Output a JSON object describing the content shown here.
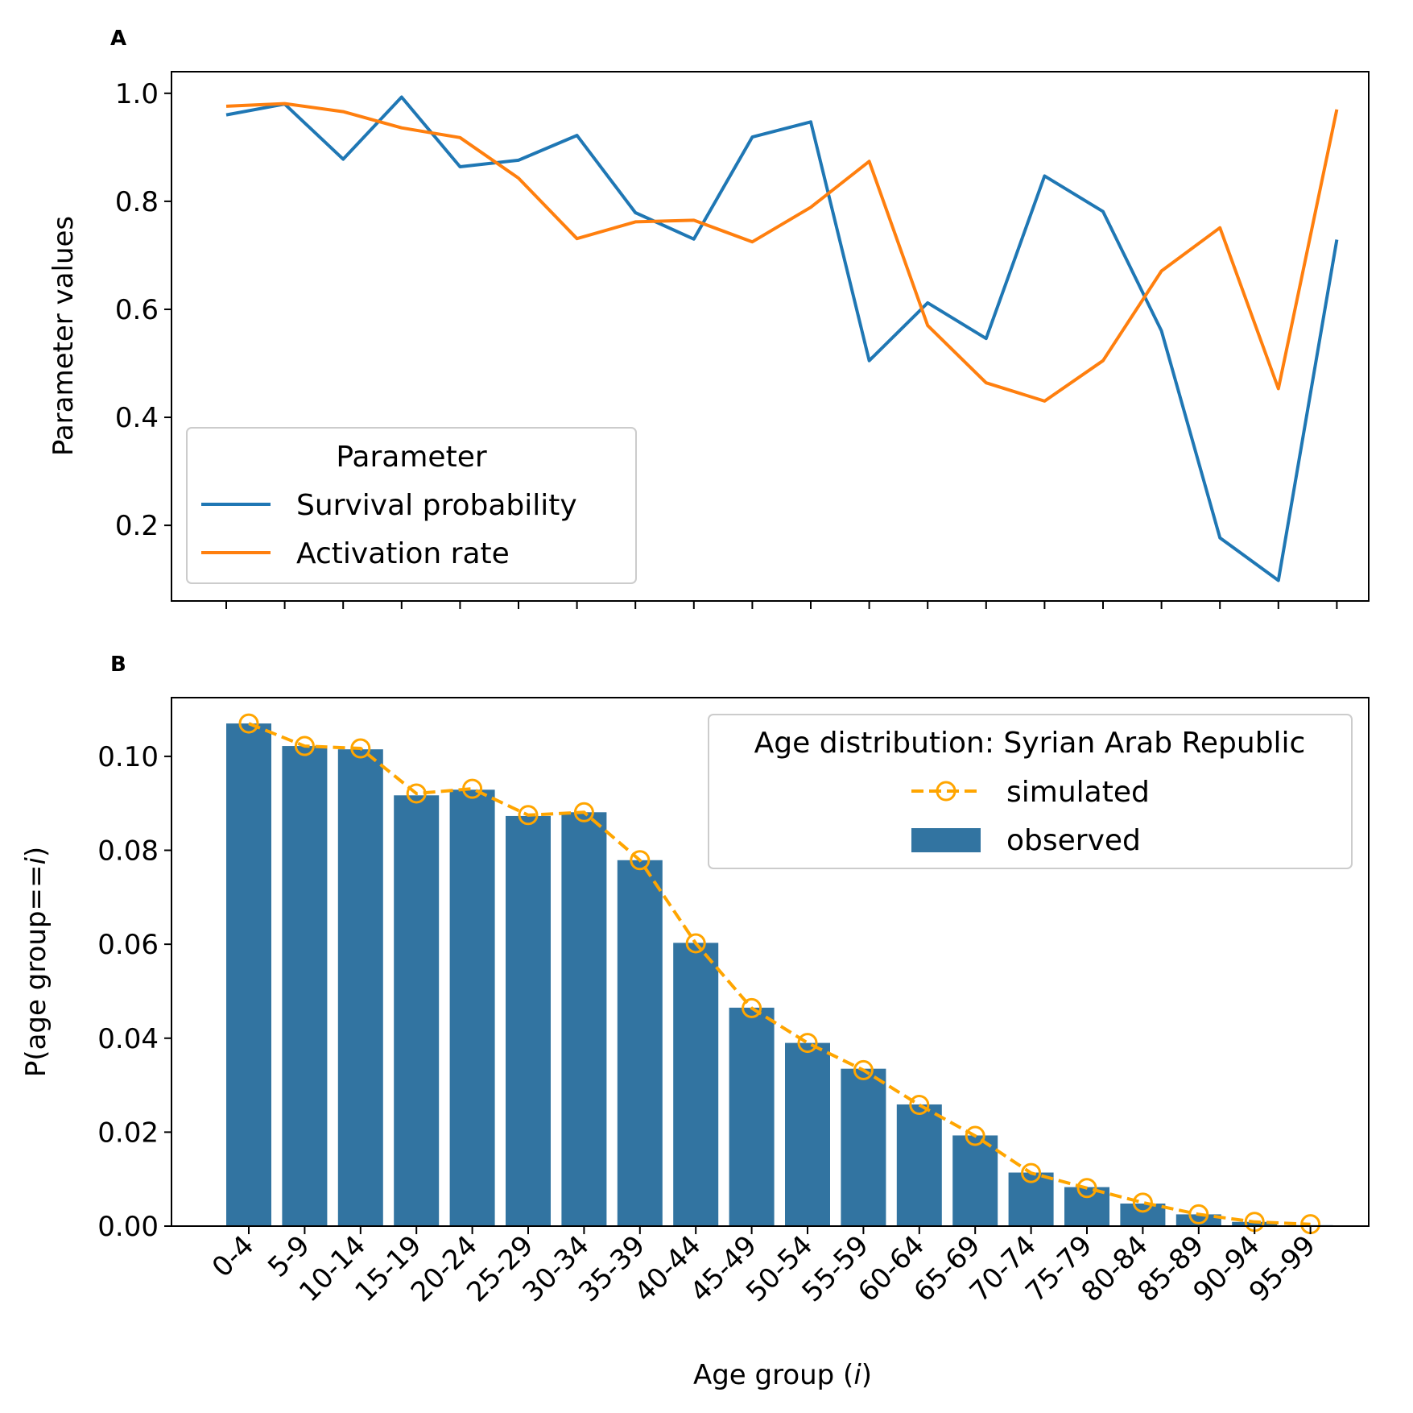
{
  "chart_data": [
    {
      "type": "line",
      "panel_label": "A",
      "ylabel": "Parameter values",
      "xlabel": "",
      "ylim": [
        0.06,
        1.04
      ],
      "yticks": [
        0.2,
        0.4,
        0.6,
        0.8,
        1.0
      ],
      "ytick_labels": [
        "0.2",
        "0.4",
        "0.6",
        "0.8",
        "1.0"
      ],
      "x": [
        0,
        1,
        2,
        3,
        4,
        5,
        6,
        7,
        8,
        9,
        10,
        11,
        12,
        13,
        14,
        15,
        16,
        17,
        18,
        19
      ],
      "legend": {
        "title": "Parameter",
        "placement": "lower-left"
      },
      "series": [
        {
          "name": "Survival probability",
          "color": "#1f77b4",
          "values": [
            0.96,
            0.98,
            0.878,
            0.993,
            0.864,
            0.876,
            0.922,
            0.779,
            0.73,
            0.919,
            0.947,
            0.505,
            0.612,
            0.546,
            0.847,
            0.781,
            0.56,
            0.177,
            0.098,
            0.729
          ]
        },
        {
          "name": "Activation rate",
          "color": "#ff7f0e",
          "values": [
            0.976,
            0.981,
            0.966,
            0.936,
            0.918,
            0.843,
            0.731,
            0.762,
            0.765,
            0.725,
            0.789,
            0.874,
            0.57,
            0.464,
            0.43,
            0.505,
            0.671,
            0.751,
            0.453,
            0.97
          ]
        }
      ]
    },
    {
      "type": "bar",
      "panel_label": "B",
      "ylabel": "P(age group==i)",
      "xlabel": "Age group (i)",
      "ylim": [
        0,
        0.1125
      ],
      "yticks": [
        0.0,
        0.02,
        0.04,
        0.06,
        0.08,
        0.1
      ],
      "ytick_labels": [
        "0.00",
        "0.02",
        "0.04",
        "0.06",
        "0.08",
        "0.10"
      ],
      "categories": [
        "0-4",
        "5-9",
        "10-14",
        "15-19",
        "20-24",
        "25-29",
        "30-34",
        "35-39",
        "40-44",
        "45-49",
        "50-54",
        "55-59",
        "60-64",
        "65-69",
        "70-74",
        "75-79",
        "80-84",
        "85-89",
        "90-94",
        "95-99"
      ],
      "legend": {
        "title": "Age distribution: Syrian Arab Republic",
        "placement": "upper-right"
      },
      "series": [
        {
          "name": "observed",
          "kind": "bar",
          "color": "#3274a1",
          "values": [
            0.107,
            0.1022,
            0.1015,
            0.0917,
            0.0929,
            0.0873,
            0.0881,
            0.0779,
            0.0603,
            0.0465,
            0.039,
            0.0335,
            0.0259,
            0.0193,
            0.0114,
            0.0083,
            0.0048,
            0.0025,
            0.0009,
            0.0002
          ]
        },
        {
          "name": "simulated",
          "kind": "line-dashed-open-circle",
          "color": "#ffa500",
          "values": [
            0.107,
            0.1022,
            0.1017,
            0.0921,
            0.0931,
            0.0875,
            0.0881,
            0.0779,
            0.0602,
            0.0464,
            0.039,
            0.0332,
            0.0258,
            0.0192,
            0.0113,
            0.0081,
            0.005,
            0.0025,
            0.0009,
            0.0004
          ]
        }
      ]
    }
  ]
}
